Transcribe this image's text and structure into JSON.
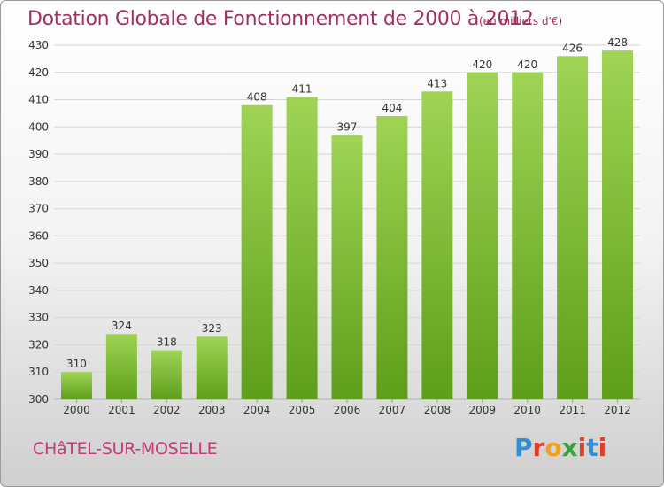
{
  "header": {
    "title": "Dotation Globale de Fonctionnement de 2000 à 2012",
    "subtitle": "(en milliers d'€)"
  },
  "footer": {
    "commune": "CHâTEL-SUR-MOSELLE",
    "brand": "Proxiti",
    "brand_colors": [
      "#2f8fd0",
      "#e0402a",
      "#f0a020",
      "#3aa040",
      "#e0402a",
      "#2f8fd0",
      "#e0402a"
    ]
  },
  "colors": {
    "bar_top": "#9fd455",
    "bar_bottom": "#5e9e1a",
    "grid": "#d4d4d4",
    "axis_text": "#333333"
  },
  "chart_data": {
    "type": "bar",
    "title": "Dotation Globale de Fonctionnement de 2000 à 2012",
    "subtitle": "(en milliers d'€)",
    "categories": [
      "2000",
      "2001",
      "2002",
      "2003",
      "2004",
      "2005",
      "2006",
      "2007",
      "2008",
      "2009",
      "2010",
      "2011",
      "2012"
    ],
    "values": [
      310,
      324,
      318,
      323,
      408,
      411,
      397,
      404,
      413,
      420,
      420,
      426,
      428
    ],
    "ylim": [
      300,
      430
    ],
    "yticks": [
      300,
      310,
      320,
      330,
      340,
      350,
      360,
      370,
      380,
      390,
      400,
      410,
      420,
      430
    ],
    "grid": true,
    "xlabel": "",
    "ylabel": ""
  }
}
